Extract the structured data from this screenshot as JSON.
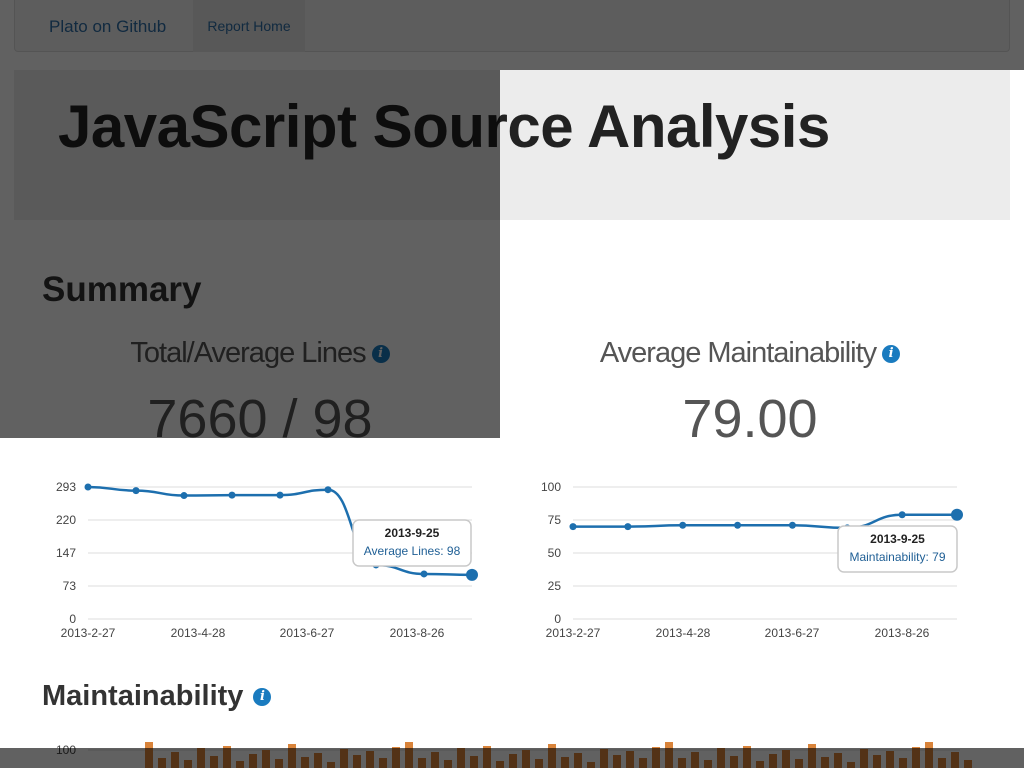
{
  "navbar": {
    "brand": "Plato on Github",
    "home": "Report Home"
  },
  "hero": {
    "title": "JavaScript Source Analysis"
  },
  "summary": {
    "heading": "Summary",
    "lines": {
      "label": "Total/Average Lines",
      "value": "7660 / 98"
    },
    "maintainability": {
      "label": "Average Maintainability",
      "value": "79.00"
    }
  },
  "info_icon": {
    "glyph": "i"
  },
  "maintainability_section": {
    "heading": "Maintainability",
    "y_tick": "100",
    "bar_color": "#d9843b"
  },
  "colors": {
    "accent": "#1a7bbf",
    "line": "#1d6fae",
    "navbar": "#f5f5f5"
  },
  "chart_data": [
    {
      "type": "line",
      "ylim": [
        0,
        293
      ],
      "yticks": [
        "0",
        "73",
        "147",
        "220",
        "293"
      ],
      "x_tick_labels": [
        "2013-2-27",
        "2013-4-28",
        "2013-6-27",
        "2013-8-26"
      ],
      "values": [
        293,
        285,
        274,
        275,
        275,
        287,
        120,
        100,
        98
      ],
      "tooltip": {
        "date": "2013-9-25",
        "text": "Average Lines: 98"
      }
    },
    {
      "type": "line",
      "ylim": [
        0,
        100
      ],
      "yticks": [
        "0",
        "25",
        "50",
        "75",
        "100"
      ],
      "x_tick_labels": [
        "2013-2-27",
        "2013-4-28",
        "2013-6-27",
        "2013-8-26"
      ],
      "values": [
        70,
        70,
        71,
        71,
        71,
        69,
        79,
        79
      ],
      "tooltip": {
        "date": "2013-9-25",
        "text": "Maintainability: 79"
      }
    }
  ]
}
